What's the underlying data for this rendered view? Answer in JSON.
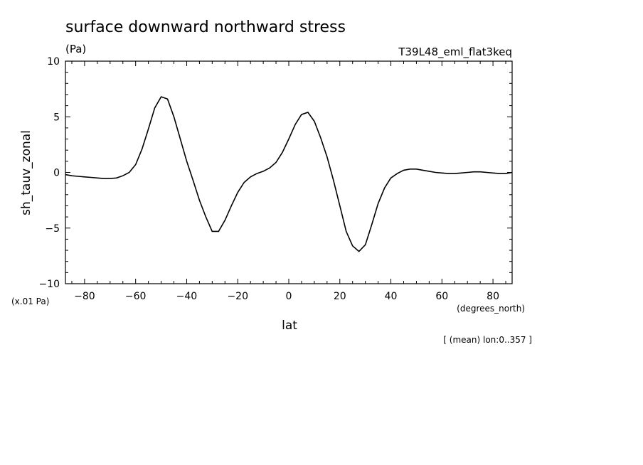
{
  "chart_data": {
    "type": "line",
    "title": "surface downward northward stress",
    "units": "(Pa)",
    "experiment": "T39L48_eml_flat3keq",
    "xlabel": "lat",
    "xunits": "(degrees_north)",
    "ylabel": "sh_tauv_zonal",
    "yscale_note": "(x.01 Pa)",
    "footnote": "[ (mean) lon:0..357 ]",
    "xlim": [
      -87.5,
      87.5
    ],
    "ylim": [
      -10,
      10
    ],
    "xticks": [
      -80,
      -60,
      -40,
      -20,
      0,
      20,
      40,
      60,
      80
    ],
    "yticks": [
      -10,
      -5,
      0,
      5,
      10
    ],
    "x": [
      -87.5,
      -85,
      -82.5,
      -80,
      -77.5,
      -75,
      -72.5,
      -70,
      -67.5,
      -65,
      -62.5,
      -60,
      -57.5,
      -55,
      -52.5,
      -50,
      -47.5,
      -45,
      -42.5,
      -40,
      -37.5,
      -35,
      -32.5,
      -30,
      -27.5,
      -25,
      -22.5,
      -20,
      -17.5,
      -15,
      -12.5,
      -10,
      -7.5,
      -5,
      -2.5,
      0,
      2.5,
      5,
      7.5,
      10,
      12.5,
      15,
      17.5,
      20,
      22.5,
      25,
      27.5,
      30,
      32.5,
      35,
      37.5,
      40,
      42.5,
      45,
      47.5,
      50,
      52.5,
      55,
      57.5,
      60,
      62.5,
      65,
      67.5,
      70,
      72.5,
      75,
      77.5,
      80,
      82.5,
      85,
      87.5
    ],
    "y": [
      -0.2,
      -0.3,
      -0.35,
      -0.4,
      -0.45,
      -0.5,
      -0.55,
      -0.55,
      -0.5,
      -0.3,
      0.0,
      0.7,
      2.1,
      3.9,
      5.8,
      6.8,
      6.6,
      5.0,
      3.0,
      1.0,
      -0.7,
      -2.5,
      -4.0,
      -5.3,
      -5.3,
      -4.3,
      -3.0,
      -1.8,
      -0.9,
      -0.4,
      -0.1,
      0.1,
      0.4,
      0.9,
      1.8,
      3.0,
      4.3,
      5.2,
      5.4,
      4.6,
      3.1,
      1.4,
      -0.7,
      -3.0,
      -5.3,
      -6.6,
      -7.1,
      -6.5,
      -4.7,
      -2.8,
      -1.4,
      -0.5,
      -0.1,
      0.2,
      0.3,
      0.3,
      0.2,
      0.1,
      0.0,
      -0.05,
      -0.1,
      -0.1,
      -0.05,
      0.0,
      0.05,
      0.05,
      0.0,
      -0.05,
      -0.1,
      -0.1,
      0.0
    ]
  }
}
